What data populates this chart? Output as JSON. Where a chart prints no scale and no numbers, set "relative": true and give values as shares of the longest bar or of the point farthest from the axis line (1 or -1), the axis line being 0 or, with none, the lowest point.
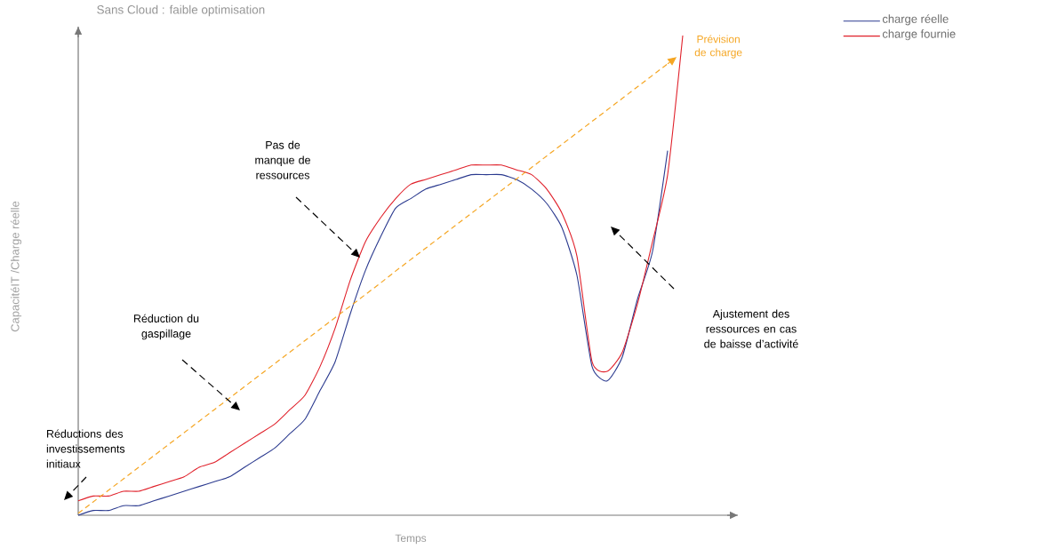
{
  "chart_data": {
    "type": "line",
    "title": "Sans Cloud : faible optimisation",
    "xlabel": "Temps",
    "ylabel": "CapacitéIT /Charge réelle",
    "relative": true,
    "legend": "top right",
    "categories": [
      null,
      null,
      null,
      null,
      null,
      null,
      null,
      null,
      null,
      null,
      null,
      null,
      null,
      null,
      null,
      null,
      null,
      null,
      null,
      null,
      null,
      null,
      null,
      null,
      null,
      null,
      null,
      null,
      null,
      null,
      null,
      null,
      null,
      null,
      null,
      null,
      null,
      null,
      null,
      null,
      null
    ],
    "series": [
      {
        "name": "charge réelle",
        "color": "#2b3a8f",
        "line_style": "solid",
        "values": [
          0,
          0.01,
          0.01,
          0.02,
          0.02,
          0.03,
          0.04,
          0.05,
          0.06,
          0.07,
          0.08,
          0.1,
          0.12,
          0.14,
          0.17,
          0.2,
          0.26,
          0.32,
          0.42,
          0.51,
          0.58,
          0.64,
          0.66,
          0.68,
          0.69,
          0.7,
          0.71,
          0.71,
          0.71,
          0.7,
          0.68,
          0.65,
          0.6,
          0.5,
          0.31,
          0.28,
          0.33,
          0.45,
          0.55,
          0.76,
          null
        ]
      },
      {
        "name": "charge fournie",
        "color": "#e0202a",
        "line_style": "solid",
        "values": [
          0.03,
          0.04,
          0.04,
          0.05,
          0.05,
          0.06,
          0.07,
          0.08,
          0.1,
          0.11,
          0.13,
          0.15,
          0.17,
          0.19,
          0.22,
          0.25,
          0.31,
          0.39,
          0.49,
          0.57,
          0.62,
          0.66,
          0.69,
          0.7,
          0.71,
          0.72,
          0.73,
          0.73,
          0.73,
          0.72,
          0.71,
          0.68,
          0.63,
          0.54,
          0.32,
          0.3,
          0.34,
          0.44,
          0.57,
          0.71,
          1
        ]
      },
      {
        "name": "Prévision de charge",
        "color": "#f5a623",
        "line_style": "dashed",
        "values": [
          0.004,
          0.028,
          0.052,
          0.076,
          0.1,
          0.124,
          0.148,
          0.172,
          0.196,
          0.22,
          0.244,
          0.268,
          0.292,
          0.316,
          0.34,
          0.364,
          0.388,
          0.412,
          0.436,
          0.46,
          0.484,
          0.509,
          0.533,
          0.557,
          0.581,
          0.605,
          0.629,
          0.653,
          0.677,
          0.701,
          0.725,
          0.749,
          0.773,
          0.797,
          0.821,
          0.845,
          0.869,
          0.893,
          0.917,
          0.941,
          null
        ]
      }
    ],
    "annotations": [
      "Réductions des investissements initiaux",
      "Réduction du gaspillage",
      "Pas de manque de ressources",
      "Ajustement des ressources en cas de baisse d’activité"
    ]
  }
}
